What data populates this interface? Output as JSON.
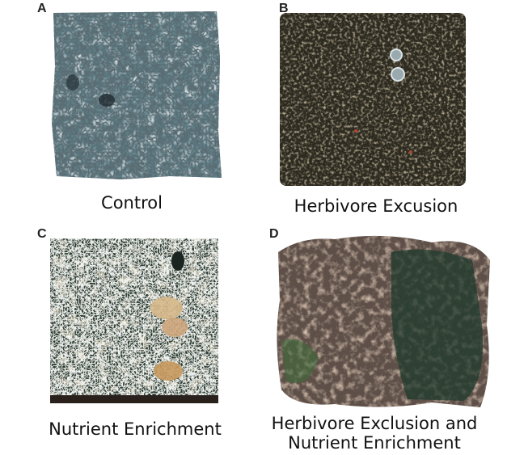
{
  "panels": [
    {
      "letter": "A",
      "caption": "Control",
      "colors": {
        "base": "#5e7d86",
        "light": "#c7d8dc",
        "dark": "#243238"
      }
    },
    {
      "letter": "B",
      "caption": "Herbivore Excusion",
      "colors": {
        "base": "#3c3728",
        "light": "#8a7a55",
        "dark": "#15140f"
      }
    },
    {
      "letter": "C",
      "caption": "Nutrient Enrichment",
      "colors": {
        "base": "#4f5a48",
        "light": "#d7b98a",
        "dark": "#1e2a22"
      }
    },
    {
      "letter": "D",
      "caption_line1": "Herbivore Exclusion and",
      "caption_line2": "Nutrient Enrichment",
      "colors": {
        "base": "#6b5c52",
        "light": "#a8876e",
        "dark": "#1f3a2c"
      }
    }
  ]
}
